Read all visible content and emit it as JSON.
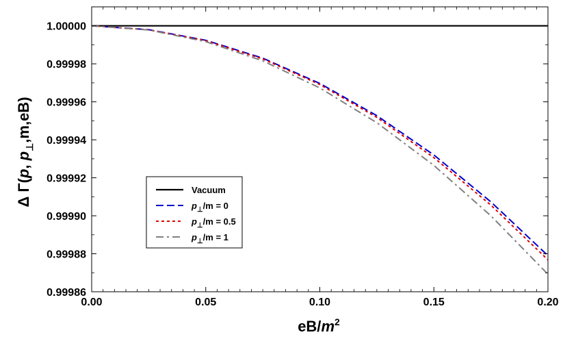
{
  "chart_data": {
    "type": "line",
    "xlabel": {
      "main": "eB/",
      "var": "m",
      "sup": "2"
    },
    "ylabel": {
      "pre": "Δ Γ(",
      "p1": "p",
      "mid": ", ",
      "p2": "p",
      "sub": "⊥",
      "post": ",m,eB)"
    },
    "xlim": [
      0.0,
      0.2
    ],
    "ylim": [
      0.99986,
      1.00001
    ],
    "xticks": [
      "0.00",
      "0.05",
      "0.10",
      "0.15",
      "0.20"
    ],
    "yticks": [
      "0.99986",
      "0.99988",
      "0.99990",
      "0.99992",
      "0.99994",
      "0.99996",
      "0.99998",
      "1.00000"
    ],
    "grid": false,
    "legend_position": "lower-left",
    "series": [
      {
        "name": "Vacuum",
        "legend_pre": "Vacuum",
        "legend_sub": "",
        "legend_post": "",
        "color": "#000000",
        "dash": "solid",
        "x": [
          0.0,
          0.2
        ],
        "y": [
          1.0,
          1.0
        ]
      },
      {
        "name": "p⊥/m = 0",
        "legend_pre": "p",
        "legend_sub": "⊥",
        "legend_post": "/m = 0",
        "color": "#0000cc",
        "dash": "dashed",
        "x": [
          0.0,
          0.025,
          0.05,
          0.075,
          0.1,
          0.125,
          0.15,
          0.175,
          0.2
        ],
        "y": [
          1.0,
          0.999998,
          0.9999924,
          0.999983,
          0.9999697,
          0.9999527,
          0.999932,
          0.9999073,
          0.999879
        ]
      },
      {
        "name": "p⊥/m = 0.5",
        "legend_pre": "p",
        "legend_sub": "⊥",
        "legend_post": "/m = 0.5",
        "color": "#dd0000",
        "dash": "dotted",
        "x": [
          0.0,
          0.025,
          0.05,
          0.075,
          0.1,
          0.125,
          0.15,
          0.175,
          0.2
        ],
        "y": [
          1.0,
          0.9999979,
          0.9999922,
          0.9999826,
          0.9999691,
          0.9999518,
          0.9999306,
          0.9999056,
          0.9998768
        ]
      },
      {
        "name": "p⊥/m = 1",
        "legend_pre": "p",
        "legend_sub": "⊥",
        "legend_post": "/m = 1",
        "color": "#808080",
        "dash": "dashdot",
        "x": [
          0.0,
          0.025,
          0.05,
          0.075,
          0.1,
          0.125,
          0.15,
          0.175,
          0.2
        ],
        "y": [
          1.0,
          0.9999978,
          0.9999917,
          0.9999816,
          0.9999673,
          0.999949,
          0.9999265,
          0.9999,
          0.9998692
        ]
      }
    ]
  }
}
